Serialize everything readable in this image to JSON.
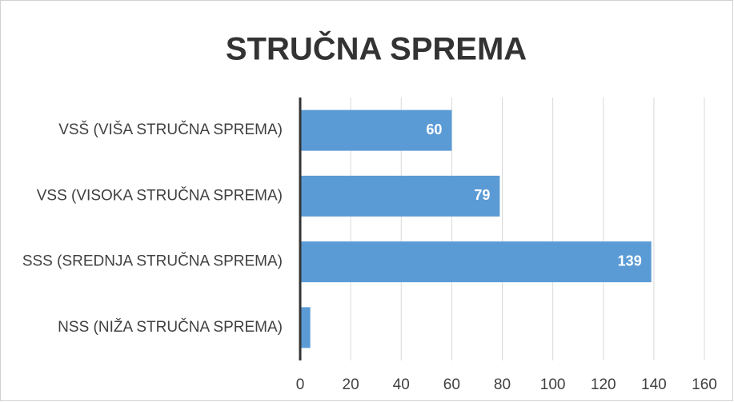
{
  "chart_data": {
    "type": "barh",
    "title": "STRUČNA SPREMA",
    "categories": [
      "VSŠ (VIŠA STRUČNA SPREMA)",
      "VSS (VISOKA STRUČNA SPREMA)",
      "SSS (SREDNJA STRUČNA SPREMA)",
      "NSS (NIŽA STRUČNA SPREMA)"
    ],
    "values": [
      60,
      79,
      139,
      4
    ],
    "value_labels": [
      "60",
      "79",
      "139",
      null
    ],
    "color": "#5b9bd5",
    "xlim": [
      0,
      160
    ],
    "xticks": [
      0,
      20,
      40,
      60,
      80,
      100,
      120,
      140,
      160
    ],
    "grid": true
  }
}
